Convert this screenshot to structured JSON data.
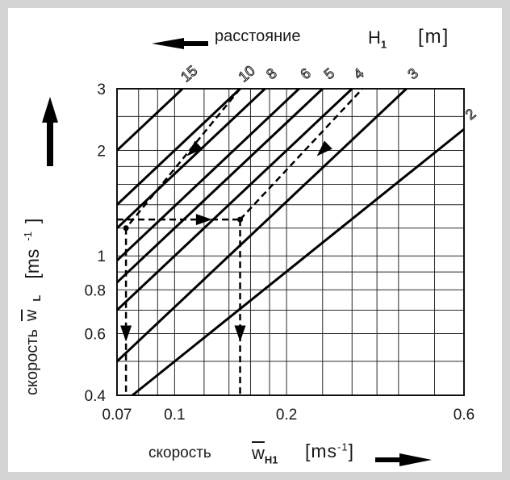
{
  "chart_data": {
    "type": "line",
    "title": "",
    "xlabel": "скорость",
    "xsymbol": "w",
    "xsymbol_sub": "H1",
    "xunit": "ms",
    "xunit_sup": "-1",
    "ylabel": "скорость",
    "ysymbol": "w",
    "ysymbol_sub": "L",
    "yunit": "ms",
    "yunit_sup": "-1",
    "top_label": "расстояние",
    "top_symbol": "H",
    "top_symbol_sub": "1",
    "top_unit": "m",
    "xscale": "log",
    "yscale": "log",
    "xlim": [
      0.07,
      0.6
    ],
    "ylim": [
      0.4,
      3
    ],
    "x_ticks": [
      0.07,
      0.1,
      0.2,
      0.6
    ],
    "x_tick_labels": [
      "0.07",
      "0.1",
      "0.2",
      "0.6"
    ],
    "y_ticks": [
      0.4,
      0.6,
      0.8,
      1,
      2,
      3
    ],
    "y_tick_labels": [
      "0.4",
      "0.6",
      "0.8",
      "1",
      "2",
      "3"
    ],
    "x_grid": [
      0.07,
      0.08,
      0.09,
      0.1,
      0.12,
      0.14,
      0.16,
      0.18,
      0.2,
      0.25,
      0.3,
      0.35,
      0.4,
      0.5,
      0.6
    ],
    "y_grid": [
      0.4,
      0.5,
      0.6,
      0.7,
      0.8,
      0.9,
      1,
      1.2,
      1.4,
      1.6,
      1.8,
      2,
      2.5,
      3
    ],
    "grid": true,
    "series": [
      {
        "name": "15",
        "points": [
          [
            0.07,
            2.0
          ],
          [
            0.105,
            3.0
          ]
        ]
      },
      {
        "name": "10",
        "points": [
          [
            0.07,
            1.4
          ],
          [
            0.15,
            3.0
          ]
        ]
      },
      {
        "name": "8",
        "points": [
          [
            0.07,
            1.2
          ],
          [
            0.175,
            3.0
          ]
        ]
      },
      {
        "name": "6",
        "points": [
          [
            0.07,
            0.97
          ],
          [
            0.216,
            3.0
          ]
        ]
      },
      {
        "name": "5",
        "points": [
          [
            0.07,
            0.84
          ],
          [
            0.25,
            3.0
          ]
        ]
      },
      {
        "name": "4",
        "points": [
          [
            0.07,
            0.7
          ],
          [
            0.3,
            3.0
          ]
        ]
      },
      {
        "name": "3",
        "points": [
          [
            0.07,
            0.5
          ],
          [
            0.42,
            3.0
          ]
        ]
      },
      {
        "name": "2",
        "points": [
          [
            0.077,
            0.4
          ],
          [
            0.6,
            2.3
          ]
        ]
      }
    ],
    "dashed_paths": [
      {
        "points": [
          [
            0.15,
            3.0
          ],
          [
            0.074,
            1.2
          ]
        ]
      },
      {
        "points": [
          [
            0.074,
            1.2
          ],
          [
            0.074,
            0.4
          ]
        ]
      },
      {
        "points": [
          [
            0.07,
            1.27
          ],
          [
            0.15,
            1.27
          ]
        ]
      },
      {
        "points": [
          [
            0.15,
            1.27
          ],
          [
            0.15,
            0.4
          ]
        ]
      },
      {
        "points": [
          [
            0.15,
            1.27
          ],
          [
            0.32,
            3.0
          ]
        ]
      }
    ],
    "arrows": [
      {
        "at": [
          0.112,
          2.0
        ],
        "toward": [
          0.098,
          1.75
        ]
      },
      {
        "at": [
          0.25,
          2.0
        ],
        "toward": [
          0.22,
          1.75
        ]
      },
      {
        "at": [
          0.12,
          1.27
        ],
        "toward": [
          0.138,
          1.27
        ]
      },
      {
        "at": [
          0.074,
          0.6
        ],
        "toward": [
          0.074,
          0.5
        ]
      },
      {
        "at": [
          0.15,
          0.6
        ],
        "toward": [
          0.15,
          0.5
        ]
      }
    ]
  }
}
